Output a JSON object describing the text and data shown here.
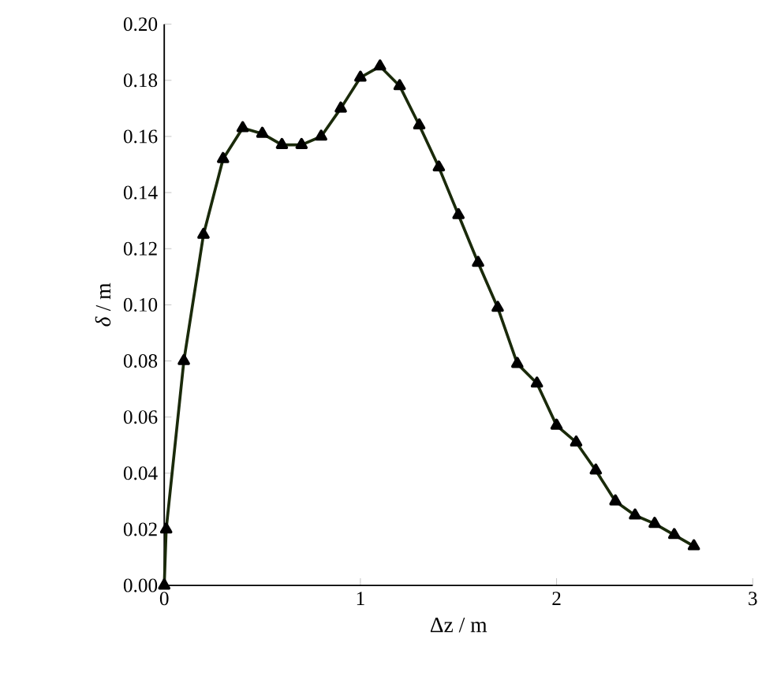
{
  "chart_data": {
    "type": "line",
    "xlabel": "Δz / m",
    "ylabel": "*δ* / m",
    "x": [
      0,
      0.01,
      0.1,
      0.2,
      0.3,
      0.4,
      0.5,
      0.6,
      0.7,
      0.8,
      0.9,
      1.0,
      1.1,
      1.2,
      1.3,
      1.4,
      1.5,
      1.6,
      1.7,
      1.8,
      1.9,
      2.0,
      2.1,
      2.2,
      2.3,
      2.4,
      2.5,
      2.6,
      2.7
    ],
    "series": [
      {
        "color": "#1a2a0a",
        "values": [
          0,
          0.02,
          0.08,
          0.125,
          0.152,
          0.163,
          0.161,
          0.157,
          0.157,
          0.16,
          0.17,
          0.181,
          0.185,
          0.178,
          0.164,
          0.149,
          0.132,
          0.115,
          0.099,
          0.079,
          0.072,
          0.057,
          0.051,
          0.041,
          0.03,
          0.025,
          0.022,
          0.018,
          0.014
        ]
      }
    ],
    "xlim": [
      0,
      3
    ],
    "ylim": [
      0,
      0.2
    ],
    "xticks": [
      0,
      1,
      2,
      3
    ],
    "yticks": [
      {
        "value": 0,
        "label": "0.00"
      },
      {
        "value": 0.02,
        "label": "0.02"
      },
      {
        "value": 0.04,
        "label": "0.04"
      },
      {
        "value": 0.06,
        "label": "0.06"
      },
      {
        "value": 0.08,
        "label": "0.08"
      },
      {
        "value": 0.1,
        "label": "0.10"
      },
      {
        "value": 0.12,
        "label": "0.12"
      },
      {
        "value": 0.14,
        "label": "0.14"
      },
      {
        "value": 0.16,
        "label": "0.16"
      },
      {
        "value": 0.18,
        "label": "0.18"
      },
      {
        "value": 0.2,
        "label": "0.20"
      }
    ],
    "grid": false,
    "marker": "triangle",
    "line_style": "solid"
  }
}
